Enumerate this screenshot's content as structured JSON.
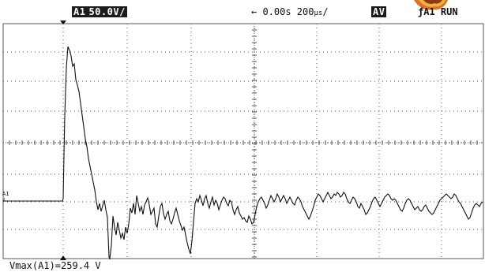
{
  "header": {
    "channel_label": "A1",
    "volts_per_div": "50.0V/",
    "timebase_label": "← 0.00s 200",
    "timebase_unit": "μs",
    "acq_mode": "AV",
    "trigger_label": "ƒA1  RUN"
  },
  "channel_marker": {
    "name": "A1",
    "symbol": "⊥"
  },
  "readout": {
    "measurement": "Vmax(A1)=259.4 V"
  },
  "waveform": {
    "color": "#111111",
    "grid_color": "#555555"
  }
}
